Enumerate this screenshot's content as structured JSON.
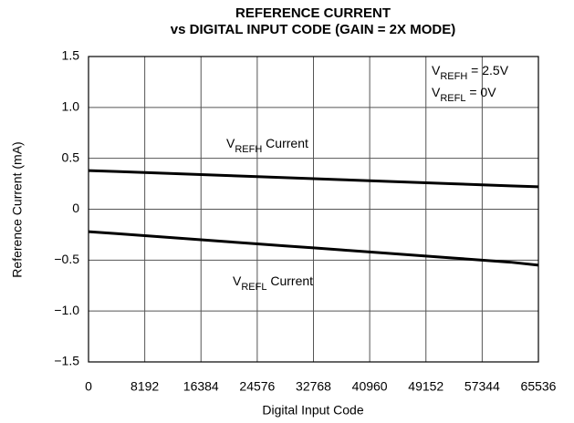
{
  "chart_data": {
    "type": "line",
    "title": [
      "REFERENCE CURRENT",
      "vs DIGITAL INPUT CODE (GAIN = 2X MODE)"
    ],
    "x_label": "Digital Input Code",
    "y_label": "Reference Current (mA)",
    "x": [
      0,
      4096,
      8192,
      12288,
      16384,
      20480,
      24576,
      28672,
      32768,
      36864,
      40960,
      45056,
      49152,
      53248,
      57344,
      61440,
      65536
    ],
    "series": [
      {
        "name": [
          "V",
          "REFH",
          " Current"
        ],
        "color": "#000000",
        "values": [
          0.38,
          0.37,
          0.36,
          0.35,
          0.34,
          0.33,
          0.32,
          0.31,
          0.3,
          0.29,
          0.28,
          0.27,
          0.26,
          0.25,
          0.24,
          0.23,
          0.22
        ]
      },
      {
        "name": [
          "V",
          "REFL",
          " Current"
        ],
        "color": "#000000",
        "values": [
          -0.22,
          -0.24,
          -0.26,
          -0.28,
          -0.3,
          -0.32,
          -0.34,
          -0.36,
          -0.38,
          -0.4,
          -0.42,
          -0.44,
          -0.46,
          -0.48,
          -0.5,
          -0.52,
          -0.55
        ]
      }
    ],
    "annotations": [
      [
        "V",
        "REFH",
        " = 2.5V"
      ],
      [
        "V",
        "REFL",
        " = 0V"
      ]
    ],
    "xlim": [
      0,
      65536
    ],
    "xticks": [
      0,
      8192,
      16384,
      24576,
      32768,
      40960,
      49152,
      57344,
      65536
    ],
    "ylim": [
      -1.5,
      1.5
    ],
    "yticks": [
      1.5,
      {
        "value": 1,
        "label": "1.0"
      },
      0.5,
      0,
      {
        "value": -0.5,
        "label": "−0.5"
      },
      {
        "value": -1,
        "label": "−1.0"
      },
      {
        "value": -1.5,
        "label": "−1.5"
      }
    ],
    "grid": true
  }
}
